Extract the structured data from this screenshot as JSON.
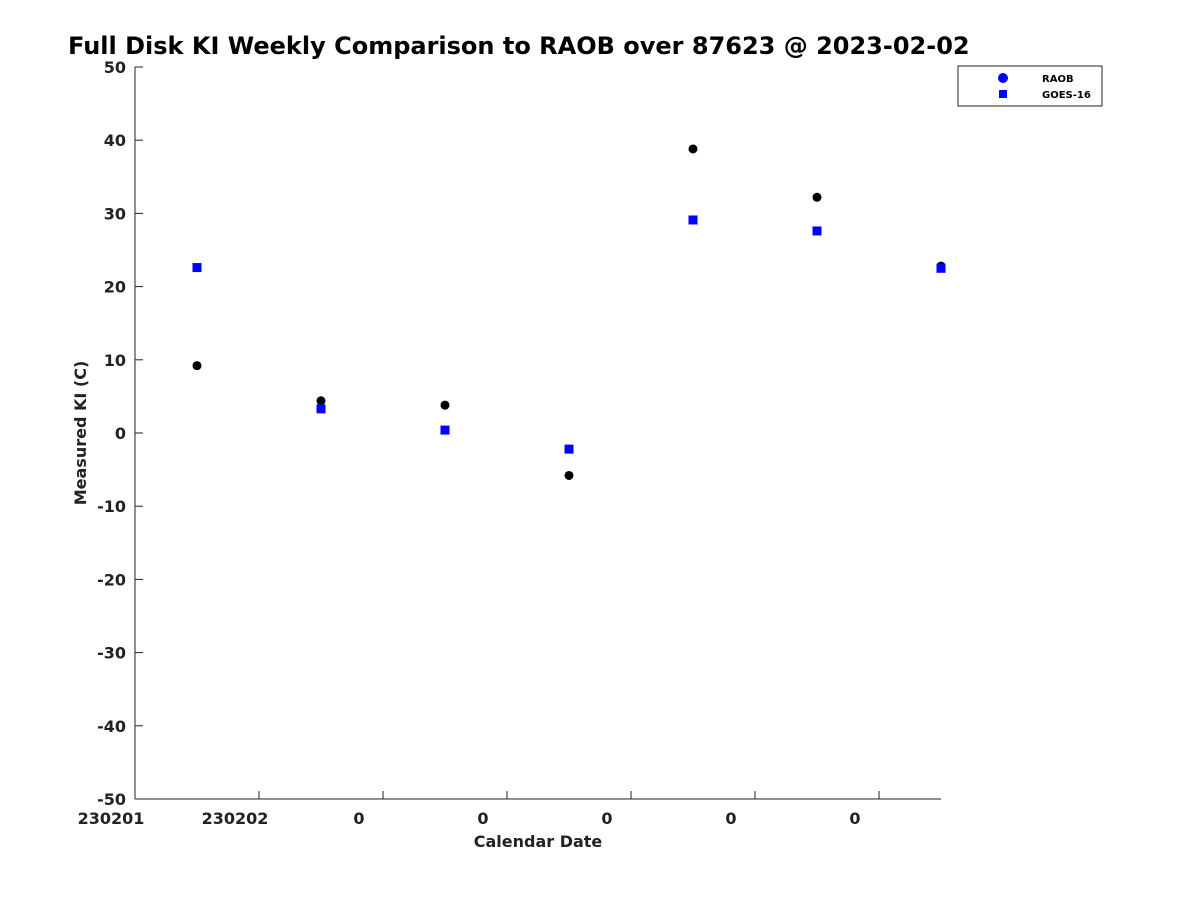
{
  "chart_data": {
    "type": "scatter",
    "title": "Full Disk KI Weekly Comparison to RAOB over 87623 @ 2023-02-02",
    "xlabel": "Calendar Date",
    "ylabel": "Measured KI (C)",
    "ylim": [
      -50,
      50
    ],
    "yticks": [
      -50,
      -40,
      -30,
      -20,
      -10,
      0,
      10,
      20,
      30,
      40,
      50
    ],
    "xlim": [
      0,
      6.5
    ],
    "xticks": [
      0,
      1,
      2,
      3,
      4,
      5,
      6
    ],
    "xtick_labels": [
      "230201",
      "230202",
      "0",
      "0",
      "0",
      "0",
      "0"
    ],
    "grid": false,
    "legend_position": "top-right",
    "series": [
      {
        "name": "RAOB",
        "marker": "circle",
        "color": "#000000",
        "legend_color": "#0000ff",
        "x": [
          0.5,
          1.5,
          2.5,
          3.5,
          4.5,
          5.5,
          6.5
        ],
        "y": [
          9.2,
          4.4,
          3.8,
          -5.8,
          38.8,
          32.2,
          22.8
        ]
      },
      {
        "name": "GOES-16",
        "marker": "square",
        "color": "#0000ff",
        "legend_color": "#0000ff",
        "x": [
          0.5,
          1.5,
          2.5,
          3.5,
          4.5,
          5.5,
          6.5
        ],
        "y": [
          22.6,
          3.3,
          0.4,
          -2.2,
          29.1,
          27.6,
          22.5
        ]
      }
    ]
  }
}
